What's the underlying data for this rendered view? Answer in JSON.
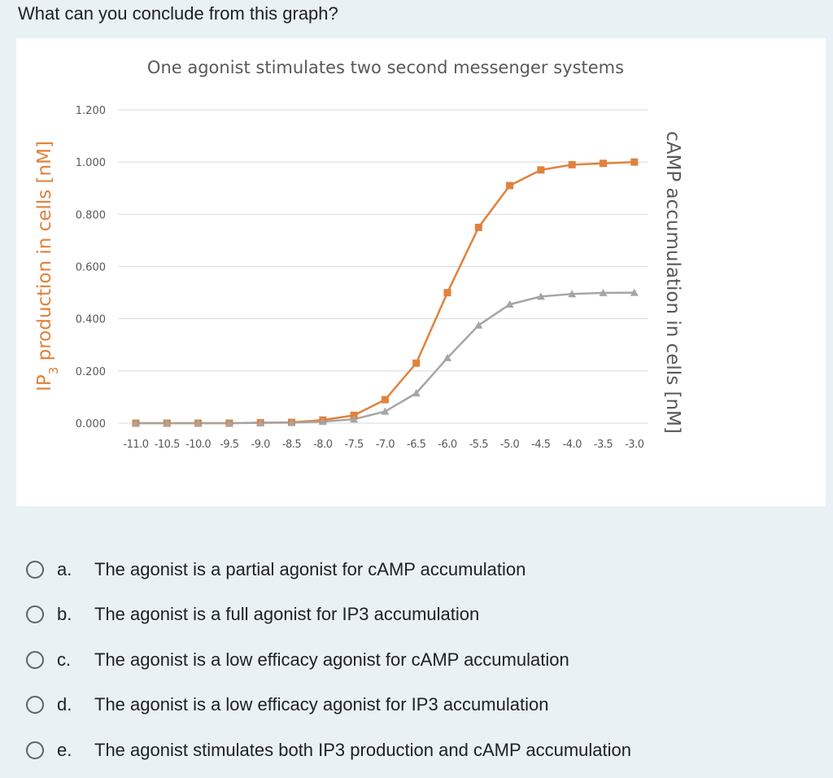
{
  "question": "What can you conclude from this graph?",
  "chart_data": {
    "type": "line",
    "title": "One agonist stimulates two second messenger systems",
    "ylabel_left": "IP3 production in cells [nM]",
    "ylabel_right": "cAMP accumulation in cells [nM]",
    "ylim": [
      0,
      1.2
    ],
    "yticks": [
      "0.000",
      "0.200",
      "0.400",
      "0.600",
      "0.800",
      "1.000",
      "1.200"
    ],
    "x": [
      "-11.0",
      "-10.5",
      "-10.0",
      "-9.5",
      "-9.0",
      "-8.5",
      "-8.0",
      "-7.5",
      "-7.0",
      "-6.5",
      "-6.0",
      "-5.5",
      "-5.0",
      "-4.5",
      "-4.0",
      "-3.5",
      "-3.0"
    ],
    "grid": true,
    "series": [
      {
        "color": "#e0823d",
        "marker": "square",
        "values": [
          0,
          0,
          0,
          0,
          0.002,
          0.003,
          0.012,
          0.03,
          0.09,
          0.23,
          0.5,
          0.75,
          0.91,
          0.97,
          0.99,
          0.995,
          1.0
        ]
      },
      {
        "color": "#a5a5a5",
        "marker": "triangle",
        "values": [
          0,
          0,
          0,
          0,
          0.001,
          0.002,
          0.006,
          0.015,
          0.045,
          0.115,
          0.25,
          0.375,
          0.455,
          0.485,
          0.495,
          0.499,
          0.5
        ]
      }
    ]
  },
  "options": [
    {
      "letter": "a.",
      "text": "The agonist is a partial agonist for cAMP accumulation"
    },
    {
      "letter": "b.",
      "text": "The agonist is a full agonist for IP3 accumulation"
    },
    {
      "letter": "c.",
      "text": "The agonist is a low efficacy agonist for cAMP accumulation"
    },
    {
      "letter": "d.",
      "text": "The agonist is a low efficacy agonist for IP3 accumulation"
    },
    {
      "letter": "e.",
      "text": "The agonist stimulates both IP3 production and cAMP accumulation"
    }
  ]
}
